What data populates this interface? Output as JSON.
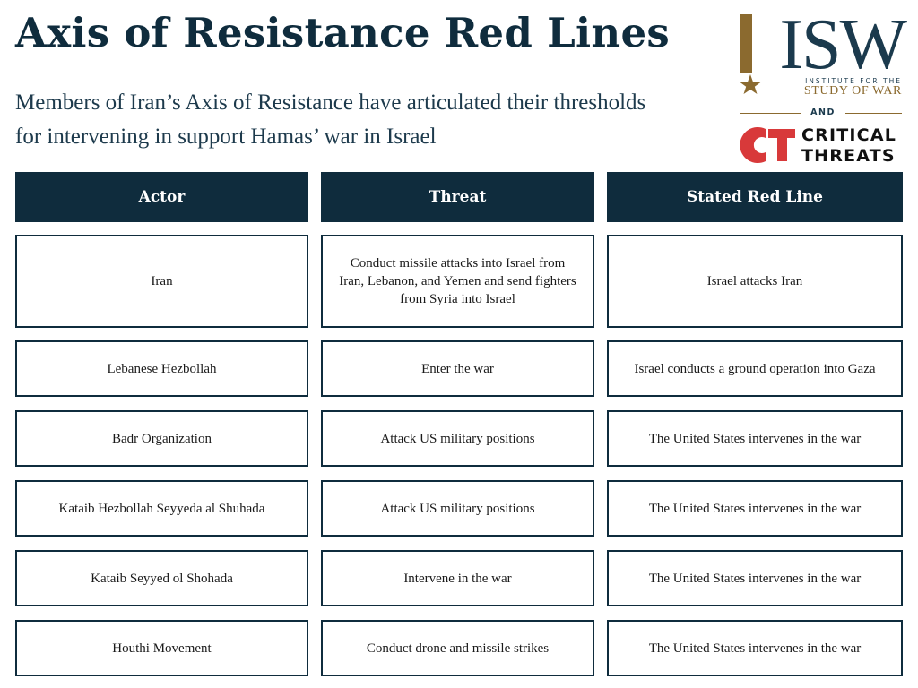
{
  "title": "Axis of Resistance Red Lines",
  "subtitle": "Members of Iran’s Axis of Resistance have articulated their thresholds for intervening in support Hamas’ war in Israel",
  "logos": {
    "isw": {
      "mark": "ISW",
      "line1": "INSTITUTE FOR THE",
      "line2": "STUDY OF WAR",
      "colors": {
        "navy": "#1b3a4d",
        "gold": "#8b6a2f"
      }
    },
    "connector": "AND",
    "ct": {
      "mark": "CT",
      "line1": "CRITICAL",
      "line2": "THREATS",
      "colors": {
        "red": "#d8393a",
        "text": "#111111"
      }
    }
  },
  "colors": {
    "header_bg": "#0f2c3d",
    "header_text": "#ffffff",
    "border": "#0f2c3d"
  },
  "table": {
    "headers": [
      "Actor",
      "Threat",
      "Stated Red Line"
    ],
    "rows": [
      [
        "Iran",
        "Conduct missile attacks into Israel from Iran, Lebanon, and Yemen and send fighters from Syria into Israel",
        "Israel attacks Iran"
      ],
      [
        "Lebanese Hezbollah",
        "Enter the war",
        "Israel conducts a ground operation into Gaza"
      ],
      [
        "Badr Organization",
        "Attack US military positions",
        "The United States intervenes in the war"
      ],
      [
        "Kataib Hezbollah Seyyeda al Shuhada",
        "Attack US military positions",
        "The United States intervenes in the war"
      ],
      [
        "Kataib Seyyed ol Shohada",
        "Intervene in the war",
        "The United States intervenes in the war"
      ],
      [
        "Houthi Movement",
        "Conduct drone and missile strikes",
        "The United States intervenes in the war"
      ]
    ]
  }
}
